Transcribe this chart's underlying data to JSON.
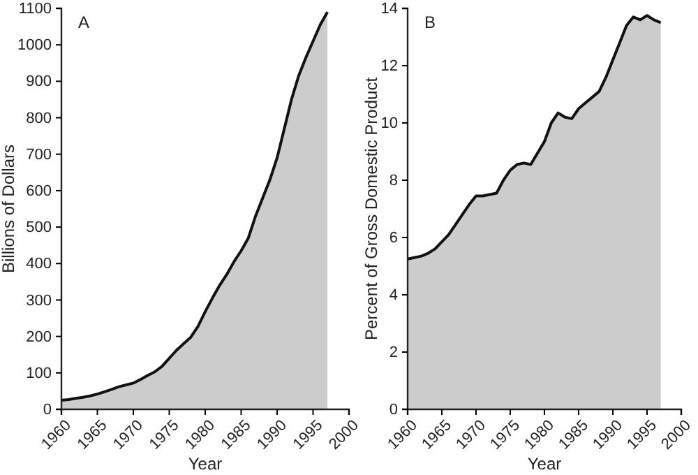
{
  "chart_data": [
    {
      "type": "area",
      "title": "A",
      "xlabel": "Year",
      "ylabel": "Billions of Dollars",
      "x": [
        1960,
        1961,
        1962,
        1963,
        1964,
        1965,
        1966,
        1967,
        1968,
        1969,
        1970,
        1971,
        1972,
        1973,
        1974,
        1975,
        1976,
        1977,
        1978,
        1979,
        1980,
        1981,
        1982,
        1983,
        1984,
        1985,
        1986,
        1987,
        1988,
        1989,
        1990,
        1991,
        1992,
        1993,
        1994,
        1995,
        1996,
        1997
      ],
      "series": [
        {
          "color": "#cccccc",
          "values": [
            25,
            27,
            30,
            33,
            37,
            42,
            48,
            55,
            62,
            67,
            72,
            82,
            93,
            103,
            118,
            140,
            162,
            180,
            198,
            228,
            268,
            305,
            340,
            370,
            405,
            435,
            470,
            530,
            580,
            630,
            690,
            770,
            850,
            915,
            965,
            1010,
            1055,
            1090
          ]
        }
      ],
      "xlim": [
        1960,
        2000
      ],
      "xticks": [
        1960,
        1965,
        1970,
        1975,
        1980,
        1985,
        1990,
        1995,
        2000
      ],
      "ylim": [
        0,
        1100
      ],
      "yticks": [
        0,
        100,
        200,
        300,
        400,
        500,
        600,
        700,
        800,
        900,
        1000,
        1100
      ],
      "grid": false
    },
    {
      "type": "area",
      "title": "B",
      "xlabel": "Year",
      "ylabel": "Percent of Gross Domestic Product",
      "x": [
        1960,
        1961,
        1962,
        1963,
        1964,
        1965,
        1966,
        1967,
        1968,
        1969,
        1970,
        1971,
        1972,
        1973,
        1974,
        1975,
        1976,
        1977,
        1978,
        1979,
        1980,
        1981,
        1982,
        1983,
        1984,
        1985,
        1986,
        1987,
        1988,
        1989,
        1990,
        1991,
        1992,
        1993,
        1994,
        1995,
        1996,
        1997
      ],
      "series": [
        {
          "color": "#cccccc",
          "values": [
            5.25,
            5.3,
            5.35,
            5.45,
            5.6,
            5.85,
            6.1,
            6.45,
            6.8,
            7.15,
            7.45,
            7.45,
            7.5,
            7.55,
            8.0,
            8.35,
            8.55,
            8.6,
            8.55,
            8.95,
            9.35,
            10.0,
            10.35,
            10.2,
            10.15,
            10.5,
            10.7,
            10.9,
            11.1,
            11.6,
            12.2,
            12.8,
            13.4,
            13.7,
            13.6,
            13.75,
            13.6,
            13.5
          ]
        }
      ],
      "xlim": [
        1960,
        2000
      ],
      "xticks": [
        1960,
        1965,
        1970,
        1975,
        1980,
        1985,
        1990,
        1995,
        2000
      ],
      "ylim": [
        0,
        14
      ],
      "yticks": [
        0,
        2,
        4,
        6,
        8,
        10,
        12,
        14
      ],
      "grid": false
    }
  ]
}
